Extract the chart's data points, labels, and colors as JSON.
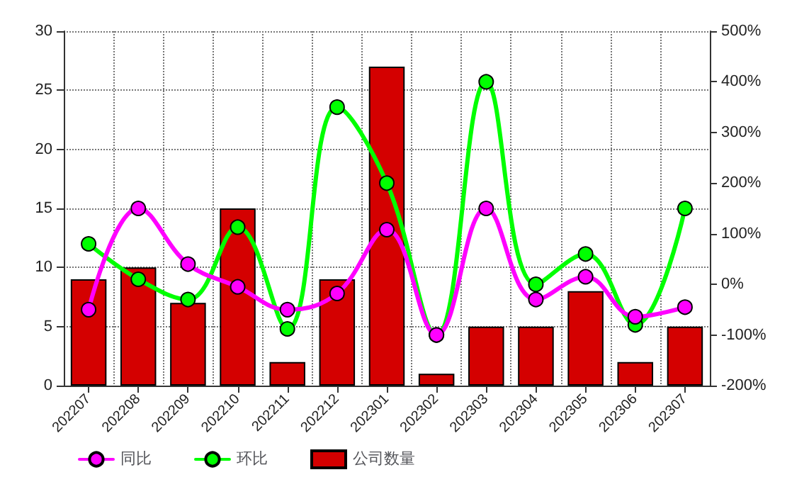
{
  "chart_data": {
    "type": "bar",
    "categories": [
      "202207",
      "202208",
      "202209",
      "202210",
      "202211",
      "202212",
      "202301",
      "202302",
      "202303",
      "202304",
      "202305",
      "202306",
      "202307"
    ],
    "series": [
      {
        "name": "同比",
        "type": "line",
        "axis": "y2",
        "color": "#ff00ff",
        "marker": "circle",
        "values": [
          -50,
          150,
          40,
          -5,
          -50,
          -18,
          108,
          -100,
          150,
          -30,
          15,
          -64,
          -45
        ]
      },
      {
        "name": "环比",
        "type": "line",
        "axis": "y2",
        "color": "#00ff00",
        "marker": "circle",
        "values": [
          80,
          10,
          -30,
          113,
          -88,
          350,
          200,
          -100,
          400,
          0,
          60,
          -80,
          150
        ]
      },
      {
        "name": "公司数量",
        "color": "#d40000",
        "values": [
          9,
          10,
          7,
          15,
          2,
          9,
          27,
          1,
          5,
          5,
          8,
          2,
          5
        ]
      }
    ],
    "ylim": [
      0,
      30
    ],
    "yticks": [
      0,
      5,
      10,
      15,
      20,
      25,
      30
    ],
    "y2lim": [
      -200,
      500
    ],
    "y2ticks": [
      {
        "value": -200,
        "label": "-200%"
      },
      {
        "value": -100,
        "label": "-100%"
      },
      {
        "value": 0,
        "label": "0%"
      },
      {
        "value": 100,
        "label": "100%"
      },
      {
        "value": 200,
        "label": "200%"
      },
      {
        "value": 300,
        "label": "300%"
      },
      {
        "value": 400,
        "label": "400%"
      },
      {
        "value": 500,
        "label": "500%"
      }
    ],
    "grid": true,
    "legend": "bottom left"
  }
}
